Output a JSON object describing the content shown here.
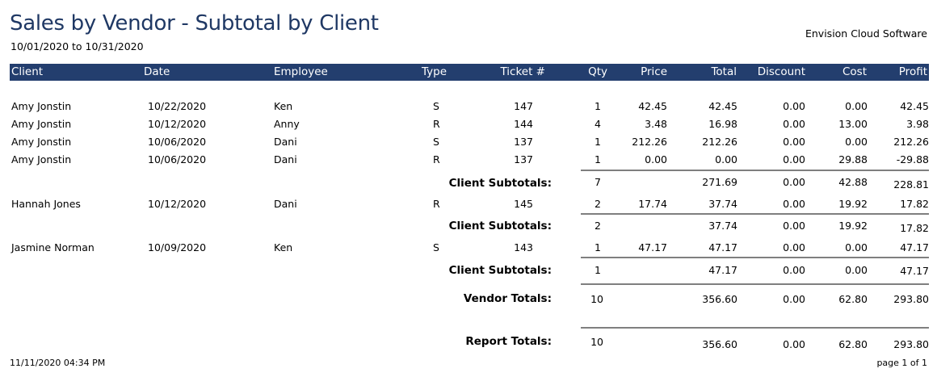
{
  "report": {
    "title": "Sales by Vendor - Subtotal by Client",
    "date_range": "10/01/2020 to 10/31/2020",
    "company": "Envision Cloud Software"
  },
  "columns": [
    "Client",
    "Date",
    "Employee",
    "Type",
    "Ticket #",
    "Qty",
    "Price",
    "Total",
    "Discount",
    "Cost",
    "Profit"
  ],
  "rows": [
    {
      "client": "Amy Jonstin",
      "date": "10/22/2020",
      "employee": "Ken",
      "type": "S",
      "ticket": "147",
      "qty": "1",
      "price": "42.45",
      "total": "42.45",
      "discount": "0.00",
      "cost": "0.00",
      "profit": "42.45"
    },
    {
      "client": "Amy Jonstin",
      "date": "10/12/2020",
      "employee": "Anny",
      "type": "R",
      "ticket": "144",
      "qty": "4",
      "price": "3.48",
      "total": "16.98",
      "discount": "0.00",
      "cost": "13.00",
      "profit": "3.98"
    },
    {
      "client": "Amy Jonstin",
      "date": "10/06/2020",
      "employee": "Dani",
      "type": "S",
      "ticket": "137",
      "qty": "1",
      "price": "212.26",
      "total": "212.26",
      "discount": "0.00",
      "cost": "0.00",
      "profit": "212.26"
    },
    {
      "client": "Amy Jonstin",
      "date": "10/06/2020",
      "employee": "Dani",
      "type": "R",
      "ticket": "137",
      "qty": "1",
      "price": "0.00",
      "total": "0.00",
      "discount": "0.00",
      "cost": "29.88",
      "profit": "-29.88"
    },
    {
      "client": "Hannah Jones",
      "date": "10/12/2020",
      "employee": "Dani",
      "type": "R",
      "ticket": "145",
      "qty": "2",
      "price": "17.74",
      "total": "37.74",
      "discount": "0.00",
      "cost": "19.92",
      "profit": "17.82"
    },
    {
      "client": "Jasmine Norman",
      "date": "10/09/2020",
      "employee": "Ken",
      "type": "S",
      "ticket": "143",
      "qty": "1",
      "price": "47.17",
      "total": "47.17",
      "discount": "0.00",
      "cost": "0.00",
      "profit": "47.17"
    }
  ],
  "subtotals": [
    {
      "label": "Client Subtotals:",
      "qty": "7",
      "total": "271.69",
      "discount": "0.00",
      "cost": "42.88",
      "profit": "228.81"
    },
    {
      "label": "Client Subtotals:",
      "qty": "2",
      "total": "37.74",
      "discount": "0.00",
      "cost": "19.92",
      "profit": "17.82"
    },
    {
      "label": "Client Subtotals:",
      "qty": "1",
      "total": "47.17",
      "discount": "0.00",
      "cost": "0.00",
      "profit": "47.17"
    }
  ],
  "vendor_totals": {
    "label": "Vendor  Totals:",
    "qty": "10",
    "total": "356.60",
    "discount": "0.00",
    "cost": "62.80",
    "profit": "293.80"
  },
  "report_totals": {
    "label": "Report Totals:",
    "qty": "10",
    "total": "356.60",
    "discount": "0.00",
    "cost": "62.80",
    "profit": "293.80"
  },
  "footer": {
    "printed": "11/11/2020 04:34 PM",
    "page": "page 1 of 1"
  }
}
